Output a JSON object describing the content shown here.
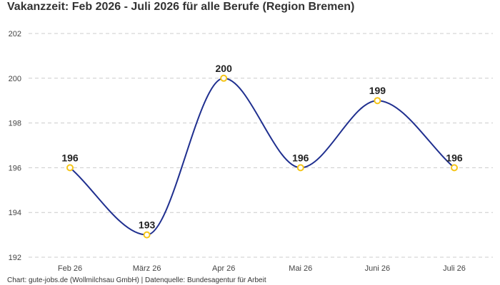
{
  "title": "Vakanzzeit: Feb 2026 - Juli 2026 für alle Berufe (Region Bremen)",
  "footer": "Chart: gute-jobs.de (Wollmilchsau GmbH) | Datenquelle: Bundesagentur für Arbeit",
  "chart_data": {
    "type": "line",
    "title": "Vakanzzeit: Feb 2026 - Juli 2026 für alle Berufe (Region Bremen)",
    "xlabel": "",
    "ylabel": "",
    "categories": [
      "Feb 26",
      "März 26",
      "Apr 26",
      "Mai 26",
      "Juni 26",
      "Juli 26"
    ],
    "values": [
      196,
      193,
      200,
      196,
      199,
      196
    ],
    "data_labels": [
      "196",
      "193",
      "200",
      "196",
      "199",
      "196"
    ],
    "ylim": [
      192,
      202
    ],
    "yticks": [
      192,
      194,
      196,
      198,
      200,
      202
    ],
    "ytick_labels": [
      "192",
      "194",
      "196",
      "198",
      "200",
      "202"
    ],
    "grid": "horizontal dashed",
    "legend": "none",
    "line_style": "smooth",
    "colors": {
      "line": "#1f2f8f",
      "marker_stroke": "#f5c518",
      "marker_fill": "#ffffff",
      "grid": "#cccccc"
    }
  }
}
